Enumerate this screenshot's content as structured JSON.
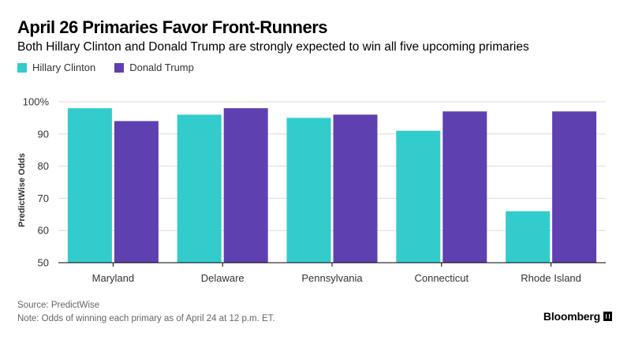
{
  "title": "April 26 Primaries Favor Front-Runners",
  "subtitle": "Both Hillary Clinton and Donald Trump are strongly expected to win all five upcoming primaries",
  "source": "Source: PredictWise",
  "note": "Note: Odds of winning each primary as of April 24 at 12 p.m. ET.",
  "brand": "Bloomberg",
  "colors": {
    "clinton": "#33cccc",
    "trump": "#5f40b0",
    "grid": "#dcdcdc",
    "axis": "#000000"
  },
  "chart_data": {
    "type": "bar",
    "categories": [
      "Maryland",
      "Delaware",
      "Pennsylvania",
      "Connecticut",
      "Rhode Island"
    ],
    "series": [
      {
        "name": "Hillary Clinton",
        "values": [
          98,
          96,
          95,
          91,
          66
        ]
      },
      {
        "name": "Donald Trump",
        "values": [
          94,
          98,
          96,
          97,
          97
        ]
      }
    ],
    "xlabel": "",
    "ylabel": "PredictWise Odds",
    "ylim": [
      50,
      100
    ],
    "yticks": [
      "50",
      "60",
      "70",
      "80",
      "90",
      "100%"
    ],
    "grid": true,
    "legend_position": "top-left"
  }
}
